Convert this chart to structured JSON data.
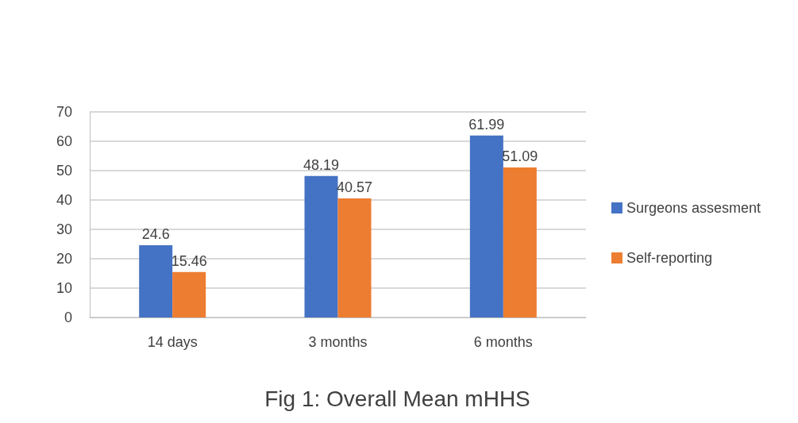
{
  "chart_data": {
    "type": "bar",
    "title": "Fig 1: Overall Mean mHHS",
    "categories": [
      "14 days",
      "3 months",
      "6 months"
    ],
    "series": [
      {
        "name": "Surgeons assesment",
        "color": "#4472c4",
        "values": [
          24.6,
          48.19,
          61.99
        ]
      },
      {
        "name": "Self-reporting",
        "color": "#ed7d31",
        "values": [
          15.46,
          40.57,
          51.09
        ]
      }
    ],
    "ylim": [
      0,
      70
    ],
    "yticks": [
      0,
      10,
      20,
      30,
      40,
      50,
      60,
      70
    ],
    "grid": "y",
    "legend": "right",
    "data_labels": true
  }
}
